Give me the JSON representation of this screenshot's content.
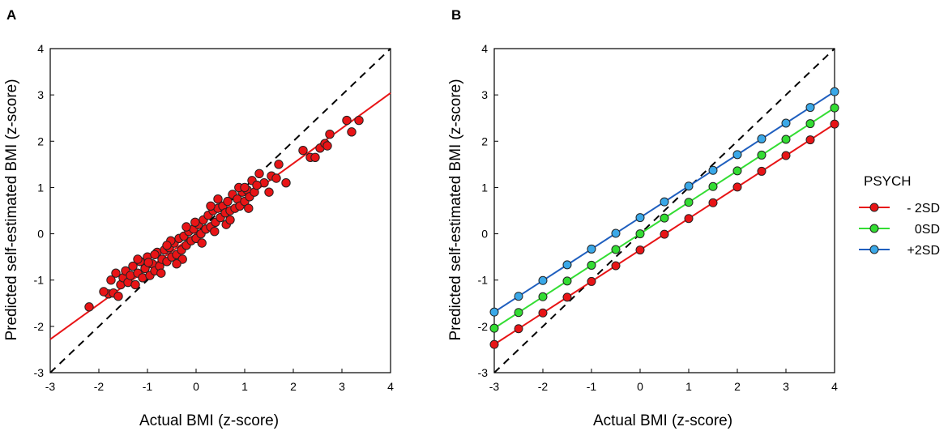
{
  "colors": {
    "red": "#e81416",
    "green": "#33dd33",
    "blue": "#1f5fbf",
    "blue_marker": "#3aa8e8",
    "dashed": "#000000",
    "marker_edge": "#222222"
  },
  "chart_data": [
    {
      "panel": "A",
      "type": "scatter",
      "xlabel": "Actual BMI (z-score)",
      "ylabel": "Predicted self-estimated BMI (z-score)",
      "xlim": [
        -3,
        4
      ],
      "ylim": [
        -3,
        4
      ],
      "xticks": [
        "-3",
        "-2",
        "-1",
        "0",
        "1",
        "2",
        "3",
        "4"
      ],
      "yticks": [
        "-3",
        "-2",
        "-1",
        "0",
        "1",
        "2",
        "3",
        "4"
      ],
      "identity_line": {
        "style": "dashed",
        "from": [
          -3,
          -3
        ],
        "to": [
          4,
          4
        ]
      },
      "fit_line": {
        "color": "red",
        "slope": 0.76,
        "intercept": 0.0
      },
      "points": [
        [
          -2.2,
          -1.58
        ],
        [
          -1.8,
          -1.3
        ],
        [
          -1.7,
          -1.28
        ],
        [
          -1.6,
          -1.35
        ],
        [
          -1.75,
          -1.0
        ],
        [
          -1.55,
          -1.1
        ],
        [
          -1.5,
          -0.95
        ],
        [
          -1.45,
          -0.8
        ],
        [
          -1.4,
          -1.05
        ],
        [
          -1.35,
          -0.9
        ],
        [
          -1.3,
          -0.7
        ],
        [
          -1.25,
          -1.1
        ],
        [
          -1.2,
          -0.85
        ],
        [
          -1.15,
          -0.6
        ],
        [
          -1.1,
          -0.95
        ],
        [
          -1.05,
          -0.75
        ],
        [
          -1.0,
          -0.5
        ],
        [
          -0.95,
          -0.9
        ],
        [
          -0.9,
          -0.65
        ],
        [
          -0.85,
          -0.8
        ],
        [
          -0.8,
          -0.4
        ],
        [
          -0.75,
          -0.7
        ],
        [
          -0.7,
          -0.55
        ],
        [
          -0.65,
          -0.35
        ],
        [
          -0.6,
          -0.6
        ],
        [
          -0.55,
          -0.3
        ],
        [
          -0.5,
          -0.5
        ],
        [
          -0.45,
          -0.2
        ],
        [
          -0.4,
          -0.45
        ],
        [
          -0.35,
          -0.1
        ],
        [
          -0.3,
          -0.35
        ],
        [
          -0.25,
          -0.05
        ],
        [
          -0.2,
          -0.25
        ],
        [
          -0.15,
          0.05
        ],
        [
          -0.1,
          -0.15
        ],
        [
          -0.05,
          0.1
        ],
        [
          0.0,
          -0.1
        ],
        [
          0.05,
          0.2
        ],
        [
          0.1,
          0.0
        ],
        [
          0.15,
          0.3
        ],
        [
          0.2,
          0.1
        ],
        [
          0.25,
          0.4
        ],
        [
          0.3,
          0.15
        ],
        [
          0.35,
          0.5
        ],
        [
          0.4,
          0.25
        ],
        [
          0.45,
          0.55
        ],
        [
          0.5,
          0.35
        ],
        [
          0.55,
          0.6
        ],
        [
          0.6,
          0.45
        ],
        [
          0.65,
          0.7
        ],
        [
          0.7,
          0.5
        ],
        [
          0.75,
          0.85
        ],
        [
          0.8,
          0.55
        ],
        [
          0.85,
          0.75
        ],
        [
          0.9,
          0.6
        ],
        [
          0.95,
          0.9
        ],
        [
          1.0,
          0.7
        ],
        [
          1.05,
          0.95
        ],
        [
          1.1,
          0.8
        ],
        [
          1.15,
          1.15
        ],
        [
          1.2,
          0.9
        ],
        [
          1.3,
          1.3
        ],
        [
          1.4,
          1.1
        ],
        [
          1.5,
          0.9
        ],
        [
          1.55,
          1.25
        ],
        [
          1.65,
          1.2
        ],
        [
          1.7,
          1.5
        ],
        [
          1.85,
          1.1
        ],
        [
          2.2,
          1.8
        ],
        [
          2.35,
          1.65
        ],
        [
          2.45,
          1.65
        ],
        [
          2.55,
          1.85
        ],
        [
          2.65,
          1.95
        ],
        [
          2.75,
          2.15
        ],
        [
          2.7,
          1.9
        ],
        [
          3.1,
          2.45
        ],
        [
          3.2,
          2.2
        ],
        [
          3.35,
          2.45
        ],
        [
          -1.9,
          -1.25
        ],
        [
          -1.65,
          -0.85
        ],
        [
          -0.98,
          -0.62
        ],
        [
          -0.72,
          -0.85
        ],
        [
          -0.52,
          -0.15
        ],
        [
          -0.28,
          -0.55
        ],
        [
          -0.02,
          0.25
        ],
        [
          0.12,
          -0.2
        ],
        [
          0.38,
          0.05
        ],
        [
          0.62,
          0.2
        ],
        [
          0.88,
          1.0
        ],
        [
          1.08,
          0.55
        ],
        [
          1.25,
          1.05
        ],
        [
          -0.6,
          -0.25
        ],
        [
          -0.2,
          0.15
        ],
        [
          0.3,
          0.6
        ],
        [
          0.7,
          0.3
        ],
        [
          -1.2,
          -0.55
        ],
        [
          -0.85,
          -0.45
        ],
        [
          0.45,
          0.75
        ],
        [
          1.0,
          1.0
        ],
        [
          -0.4,
          -0.65
        ]
      ]
    },
    {
      "panel": "B",
      "type": "line",
      "xlabel": "Actual BMI (z-score)",
      "ylabel": "Predicted self-estimated BMI (z-score)",
      "xlim": [
        -3,
        4
      ],
      "ylim": [
        -3,
        4
      ],
      "xticks": [
        "-3",
        "-2",
        "-1",
        "0",
        "1",
        "2",
        "3",
        "4"
      ],
      "yticks": [
        "-3",
        "-2",
        "-1",
        "0",
        "1",
        "2",
        "3",
        "4"
      ],
      "identity_line": {
        "style": "dashed",
        "from": [
          -3,
          -3
        ],
        "to": [
          4,
          4
        ]
      },
      "x": [
        -3,
        -2.5,
        -2,
        -1.5,
        -1,
        -0.5,
        0,
        0.5,
        1,
        1.5,
        2,
        2.5,
        3,
        3.5,
        4
      ],
      "series": [
        {
          "name": "- 2SD",
          "color": "red",
          "values": [
            -2.39,
            -2.05,
            -1.71,
            -1.37,
            -1.03,
            -0.69,
            -0.35,
            -0.01,
            0.33,
            0.67,
            1.01,
            1.35,
            1.69,
            2.03,
            2.37
          ]
        },
        {
          "name": "0SD",
          "color": "green",
          "values": [
            -2.04,
            -1.7,
            -1.36,
            -1.02,
            -0.68,
            -0.34,
            0.0,
            0.34,
            0.68,
            1.02,
            1.36,
            1.7,
            2.04,
            2.38,
            2.72
          ]
        },
        {
          "name": "+2SD",
          "color": "blue",
          "values": [
            -1.69,
            -1.35,
            -1.01,
            -0.67,
            -0.33,
            0.01,
            0.35,
            0.69,
            1.03,
            1.37,
            1.71,
            2.05,
            2.39,
            2.73,
            3.07
          ]
        }
      ],
      "legend": {
        "title": "PSYCH",
        "position": "right"
      }
    }
  ]
}
